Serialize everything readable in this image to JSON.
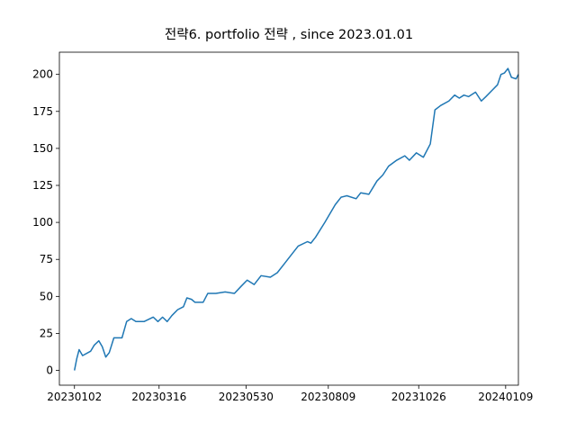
{
  "chart_data": {
    "type": "line",
    "title": "전략6. portfolio 전략 , since 2023.01.01",
    "x": [
      "2023-01-02",
      "2023-01-04",
      "2023-01-06",
      "2023-01-09",
      "2023-01-16",
      "2023-01-19",
      "2023-01-23",
      "2023-01-26",
      "2023-01-29",
      "2023-02-01",
      "2023-02-05",
      "2023-02-12",
      "2023-02-16",
      "2023-02-20",
      "2023-02-24",
      "2023-03-03",
      "2023-03-11",
      "2023-03-15",
      "2023-03-19",
      "2023-03-23",
      "2023-03-27",
      "2023-04-01",
      "2023-04-06",
      "2023-04-09",
      "2023-04-13",
      "2023-04-16",
      "2023-04-23",
      "2023-04-27",
      "2023-05-04",
      "2023-05-12",
      "2023-05-20",
      "2023-05-26",
      "2023-05-31",
      "2023-06-06",
      "2023-06-12",
      "2023-06-20",
      "2023-06-26",
      "2023-07-02",
      "2023-07-06",
      "2023-07-14",
      "2023-07-22",
      "2023-07-25",
      "2023-07-29",
      "2023-08-06",
      "2023-08-09",
      "2023-08-15",
      "2023-08-20",
      "2023-08-25",
      "2023-09-02",
      "2023-09-06",
      "2023-09-13",
      "2023-09-20",
      "2023-09-25",
      "2023-09-30",
      "2023-10-07",
      "2023-10-14",
      "2023-10-18",
      "2023-10-24",
      "2023-10-30",
      "2023-11-05",
      "2023-11-09",
      "2023-11-14",
      "2023-11-21",
      "2023-11-26",
      "2023-11-30",
      "2023-12-04",
      "2023-12-08",
      "2023-12-14",
      "2023-12-19",
      "2023-12-23",
      "2023-12-28",
      "2024-01-02",
      "2024-01-05",
      "2024-01-08",
      "2024-01-11",
      "2024-01-14",
      "2024-01-18",
      "2024-01-20"
    ],
    "series": [
      {
        "color": "#1f77b4",
        "values": [
          0,
          8,
          14,
          10,
          13,
          17,
          20,
          16,
          9,
          12,
          22,
          22,
          33,
          35,
          33,
          33,
          36,
          33,
          36,
          33,
          37,
          41,
          43,
          49,
          48,
          46,
          46,
          52,
          52,
          53,
          52,
          57,
          61,
          58,
          64,
          63,
          66,
          72,
          76,
          84,
          87,
          86,
          90,
          100,
          104,
          112,
          117,
          118,
          116,
          120,
          119,
          128,
          132,
          138,
          142,
          145,
          142,
          147,
          144,
          153,
          176,
          179,
          182,
          186,
          184,
          186,
          185,
          188,
          182,
          185,
          189,
          193,
          200,
          201,
          204,
          198,
          197,
          200
        ]
      }
    ],
    "xlim": [
      "2022-12-20",
      "2024-01-20"
    ],
    "xticks": [
      {
        "value": "2023-01-02",
        "label": "20230102"
      },
      {
        "value": "2023-03-16",
        "label": "20230316"
      },
      {
        "value": "2023-05-30",
        "label": "20230530"
      },
      {
        "value": "2023-08-09",
        "label": "20230809"
      },
      {
        "value": "2023-10-26",
        "label": "20231026"
      },
      {
        "value": "2024-01-09",
        "label": "20240109"
      }
    ],
    "ylim": [
      -10,
      215
    ],
    "yticks": [
      0,
      25,
      50,
      75,
      100,
      125,
      150,
      175,
      200
    ]
  }
}
